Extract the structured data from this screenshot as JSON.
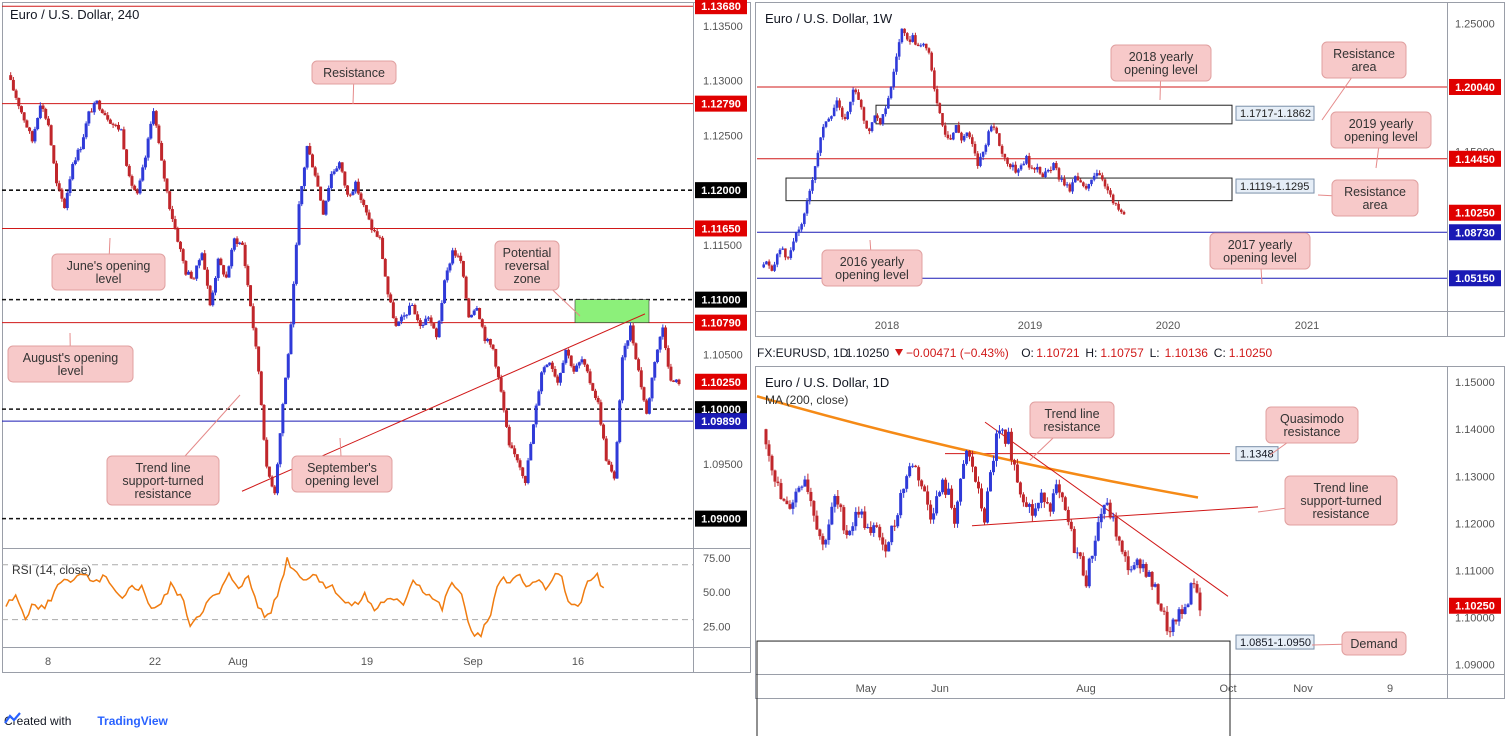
{
  "footer": {
    "created_with": "Created with",
    "brand": "TradingView"
  },
  "colors": {
    "up": "#2f3ad8",
    "down": "#c0262b",
    "resistance": "#d01818",
    "support": "#1a1ab5",
    "callout_bg": "#f7c9c9",
    "callout_border": "#e0a0a0",
    "zone": "#8cf07a",
    "ma": "#f58a16",
    "rsi": "#f07c10"
  },
  "chart_data": [
    {
      "id": "h4",
      "type": "candlestick",
      "title": "Euro / U.S. Dollar, 240",
      "ylim": [
        1.0875,
        1.137
      ],
      "y_ticks": [
        "1.13500",
        "1.13000",
        "1.12500",
        "1.11500",
        "1.10500",
        "1.09500"
      ],
      "x_ticks": [
        "8",
        "22",
        "Aug",
        "19",
        "Sep",
        "16"
      ],
      "price_labels": [
        {
          "value": "1.13680",
          "style": "red"
        },
        {
          "value": "1.12790",
          "style": "red"
        },
        {
          "value": "1.12000",
          "style": "black"
        },
        {
          "value": "1.11650",
          "style": "red"
        },
        {
          "value": "1.11000",
          "style": "black"
        },
        {
          "value": "1.10790",
          "style": "red"
        },
        {
          "value": "1.10250",
          "style": "red"
        },
        {
          "value": "1.10000",
          "style": "black"
        },
        {
          "value": "1.09890",
          "style": "blue"
        },
        {
          "value": "1.09000",
          "style": "black"
        }
      ],
      "levels": [
        {
          "value": 1.1368,
          "style": "red"
        },
        {
          "value": 1.1279,
          "style": "red"
        },
        {
          "value": 1.12,
          "style": "dashed"
        },
        {
          "value": 1.1165,
          "style": "red"
        },
        {
          "value": 1.11,
          "style": "dashed"
        },
        {
          "value": 1.1079,
          "style": "red"
        },
        {
          "value": 1.1,
          "style": "dashed"
        },
        {
          "value": 1.0989,
          "style": "blue"
        },
        {
          "value": 1.09,
          "style": "dashed"
        }
      ],
      "zone": {
        "from": 1.1079,
        "to": 1.11
      },
      "trend_line": {
        "from": 1.0925,
        "to": 1.1087
      },
      "path": [
        1.1305,
        1.1285,
        1.1265,
        1.1245,
        1.128,
        1.126,
        1.1205,
        1.1185,
        1.1225,
        1.124,
        1.127,
        1.128,
        1.127,
        1.126,
        1.1255,
        1.121,
        1.1195,
        1.123,
        1.1275,
        1.1225,
        1.1185,
        1.1155,
        1.1125,
        1.112,
        1.1145,
        1.1095,
        1.1135,
        1.112,
        1.1155,
        1.115,
        1.1095,
        1.1035,
        1.0945,
        1.0925,
        1.1005,
        1.1075,
        1.1185,
        1.124,
        1.1215,
        1.118,
        1.1215,
        1.1225,
        1.1195,
        1.1205,
        1.1185,
        1.1165,
        1.1155,
        1.1105,
        1.1075,
        1.1085,
        1.1095,
        1.1075,
        1.1085,
        1.1065,
        1.1115,
        1.1145,
        1.1135,
        1.1085,
        1.1095,
        1.1065,
        1.1055,
        1.1015,
        1.0965,
        1.0955,
        1.0935,
        1.0985,
        1.1035,
        1.1045,
        1.1025,
        1.1055,
        1.1035,
        1.1045,
        1.1025,
        1.1005,
        1.0955,
        1.0935,
        1.1045,
        1.1075,
        1.1035,
        1.0995,
        1.1045,
        1.1075,
        1.1025,
        1.1025
      ]
    },
    {
      "id": "rsi",
      "type": "line",
      "title": "RSI (14, close)",
      "ylim": [
        10,
        80
      ],
      "y_ticks": [
        "75.00",
        "50.00",
        "25.00"
      ],
      "bands": [
        70,
        30
      ],
      "values": [
        40,
        46,
        33,
        41,
        38,
        50,
        61,
        58,
        63,
        55,
        62,
        52,
        43,
        55,
        53,
        39,
        41,
        55,
        48,
        27,
        35,
        44,
        49,
        62,
        55,
        60,
        40,
        31,
        48,
        74,
        64,
        60,
        63,
        55,
        52,
        42,
        40,
        48,
        37,
        44,
        43,
        42,
        60,
        52,
        46,
        38,
        58,
        46,
        22,
        18,
        35,
        60,
        55,
        63,
        54,
        58,
        52,
        66,
        45,
        37,
        57,
        62,
        46
      ]
    },
    {
      "id": "w1",
      "type": "candlestick",
      "title": "Euro / U.S. Dollar, 1W",
      "ylim": [
        1.026,
        1.265
      ],
      "y_ticks": [
        "1.25000",
        "1.15000"
      ],
      "x_ticks": [
        "2018",
        "2019",
        "2020",
        "2021"
      ],
      "price_labels": [
        {
          "value": "1.20040",
          "style": "red"
        },
        {
          "value": "1.14450",
          "style": "red"
        },
        {
          "value": "1.10250",
          "style": "red"
        },
        {
          "value": "1.08730",
          "style": "blue"
        },
        {
          "value": "1.05150",
          "style": "blue"
        }
      ],
      "levels": [
        {
          "value": 1.2004,
          "style": "red"
        },
        {
          "value": 1.1445,
          "style": "red"
        },
        {
          "value": 1.0873,
          "style": "blue"
        },
        {
          "value": 1.0515,
          "style": "blue"
        }
      ],
      "boxes": [
        {
          "label": "1.1717-1.1862",
          "from": 1.1717,
          "to": 1.1862
        },
        {
          "label": "1.1119-1.1295",
          "from": 1.1119,
          "to": 1.1295
        }
      ],
      "path": [
        1.06,
        1.065,
        1.055,
        1.07,
        1.075,
        1.065,
        1.08,
        1.09,
        1.1,
        1.12,
        1.14,
        1.16,
        1.175,
        1.18,
        1.19,
        1.175,
        1.18,
        1.2,
        1.19,
        1.175,
        1.165,
        1.18,
        1.17,
        1.185,
        1.2,
        1.225,
        1.245,
        1.235,
        1.24,
        1.23,
        1.235,
        1.225,
        1.2,
        1.18,
        1.165,
        1.16,
        1.17,
        1.16,
        1.165,
        1.155,
        1.14,
        1.15,
        1.165,
        1.17,
        1.155,
        1.145,
        1.14,
        1.135,
        1.14,
        1.145,
        1.135,
        1.14,
        1.13,
        1.135,
        1.14,
        1.13,
        1.125,
        1.12,
        1.13,
        1.125,
        1.12,
        1.13,
        1.135,
        1.13,
        1.12,
        1.11,
        1.105,
        1.1
      ]
    },
    {
      "id": "d1",
      "type": "candlestick",
      "title": "Euro / U.S. Dollar, 1D",
      "ohlc_header": {
        "symbol": "FX:EURUSD, 1D",
        "close": "1.10250",
        "change": "−0.00471 (−0.43%)",
        "o": "1.10721",
        "h": "1.10757",
        "l": "1.10136",
        "c": "1.10250",
        "o_label": "O:",
        "h_label": "H:",
        "l_label": "L:",
        "c_label": "C:"
      },
      "ma_label": "MA (200, close)",
      "ylim": [
        1.088,
        1.153
      ],
      "y_ticks": [
        "1.15000",
        "1.14000",
        "1.13000",
        "1.12000",
        "1.11000",
        "1.10000",
        "1.09000"
      ],
      "x_ticks": [
        "May",
        "Jun",
        "Aug",
        "Oct",
        "Nov",
        "9"
      ],
      "price_labels": [
        {
          "value": "1.10250",
          "style": "red"
        }
      ],
      "levels": [
        {
          "value": 1.1348,
          "style": "red-partial",
          "label": "1.1348"
        }
      ],
      "boxes": [
        {
          "label": "1.0851-1.0950",
          "from": 1.0851,
          "to": 1.095
        }
      ],
      "ma": {
        "from": 1.147,
        "to": 1.1255
      },
      "trend_lines": [
        {
          "name": "Trend line resistance",
          "from": 1.1415,
          "to": 1.1045
        },
        {
          "name": "Trend line support-turned resistance",
          "from": 1.1195,
          "to": 1.1235
        }
      ],
      "path": [
        1.14,
        1.135,
        1.13,
        1.125,
        1.123,
        1.125,
        1.128,
        1.13,
        1.125,
        1.12,
        1.115,
        1.12,
        1.125,
        1.122,
        1.118,
        1.12,
        1.123,
        1.12,
        1.117,
        1.12,
        1.114,
        1.117,
        1.12,
        1.126,
        1.13,
        1.133,
        1.13,
        1.126,
        1.122,
        1.125,
        1.128,
        1.126,
        1.121,
        1.128,
        1.135,
        1.132,
        1.126,
        1.121,
        1.13,
        1.138,
        1.139,
        1.138,
        1.132,
        1.127,
        1.125,
        1.122,
        1.124,
        1.126,
        1.124,
        1.127,
        1.124,
        1.12,
        1.115,
        1.112,
        1.108,
        1.114,
        1.12,
        1.124,
        1.122,
        1.118,
        1.113,
        1.111,
        1.11,
        1.112,
        1.11,
        1.107,
        1.104,
        1.1,
        1.096,
        1.1,
        1.1005,
        1.104,
        1.108,
        1.1025
      ]
    }
  ],
  "annotations": {
    "h4": [
      {
        "key": "resistance",
        "text": [
          "Resistance"
        ]
      },
      {
        "key": "june",
        "text": [
          "June's opening",
          "level"
        ]
      },
      {
        "key": "potential",
        "text": [
          "Potential",
          "reversal",
          "zone"
        ]
      },
      {
        "key": "august",
        "text": [
          "August's opening",
          "level"
        ]
      },
      {
        "key": "trend",
        "text": [
          "Trend line",
          "support-turned",
          "resistance"
        ]
      },
      {
        "key": "september",
        "text": [
          "September's",
          "opening level"
        ]
      }
    ],
    "w1": [
      {
        "key": "y2018",
        "text": [
          "2018 yearly",
          "opening level"
        ]
      },
      {
        "key": "resarea1",
        "text": [
          "Resistance",
          "area"
        ]
      },
      {
        "key": "y2019",
        "text": [
          "2019 yearly",
          "opening level"
        ]
      },
      {
        "key": "resarea2",
        "text": [
          "Resistance",
          "area"
        ]
      },
      {
        "key": "y2016",
        "text": [
          "2016 yearly",
          "opening level"
        ]
      },
      {
        "key": "y2017",
        "text": [
          "2017 yearly",
          "opening level"
        ]
      }
    ],
    "d1": [
      {
        "key": "tlres",
        "text": [
          "Trend line",
          "resistance"
        ]
      },
      {
        "key": "quasi",
        "text": [
          "Quasimodo",
          "resistance"
        ]
      },
      {
        "key": "tlsup",
        "text": [
          "Trend line",
          "support-turned",
          "resistance"
        ]
      },
      {
        "key": "demand",
        "text": [
          "Demand"
        ]
      }
    ]
  }
}
